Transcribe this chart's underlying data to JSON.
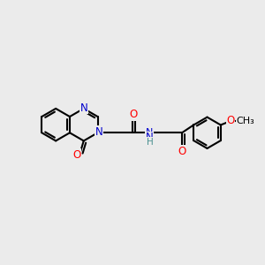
{
  "bg_color": "#ebebeb",
  "bond_color": "#000000",
  "bond_width": 1.5,
  "atom_colors": {
    "N": "#0000cd",
    "O": "#ff0000",
    "C": "#000000",
    "H": "#4a9090"
  },
  "font_size": 8.5,
  "fig_bg": "#ebebeb",
  "xlim": [
    0,
    10
  ],
  "ylim": [
    0,
    10
  ]
}
